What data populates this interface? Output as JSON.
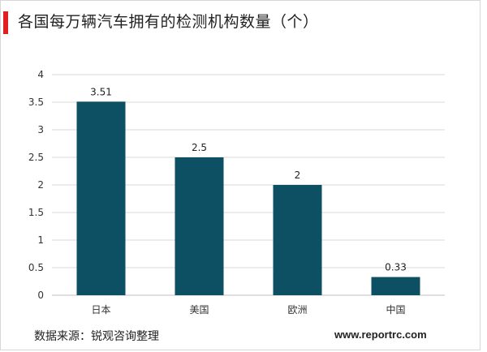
{
  "title": "各国每万辆汽车拥有的检测机构数量（个）",
  "source": "数据来源：锐观咨询整理",
  "website": "www.reportrc.com",
  "colors": {
    "accent": "#e02020",
    "bar": "#0d4f63",
    "grid": "#d9d9d9",
    "axis": "#bfbfbf"
  },
  "chart_data": {
    "type": "bar",
    "title": "各国每万辆汽车拥有的检测机构数量（个）",
    "categories": [
      "日本",
      "美国",
      "欧洲",
      "中国"
    ],
    "values": [
      3.51,
      2.5,
      2,
      0.33
    ],
    "value_labels": [
      "3.51",
      "2.5",
      "2",
      "0.33"
    ],
    "yticks": [
      "0",
      "0.5",
      "1",
      "1.5",
      "2",
      "2.5",
      "3",
      "3.5",
      "4"
    ],
    "ylim": [
      0,
      4
    ],
    "grid": true,
    "legend": "none"
  }
}
